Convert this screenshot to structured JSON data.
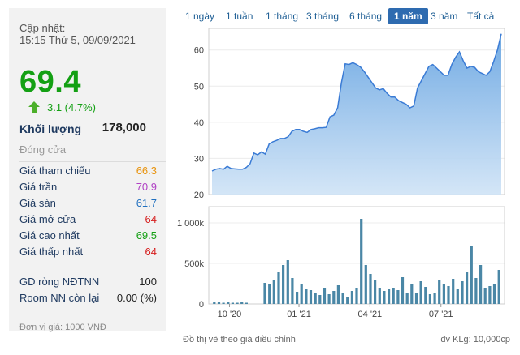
{
  "update": {
    "label": "Cập nhật:",
    "time": "15:15 Thứ 5, 09/09/2021"
  },
  "price": "69.4",
  "change": "3.1 (4.7%)",
  "volume": {
    "label": "Khối lượng",
    "value": "178,000"
  },
  "close_label": "Đóng cửa",
  "stats": [
    {
      "label": "Giá tham chiếu",
      "value": "66.3",
      "color": "#e8920b"
    },
    {
      "label": "Giá trần",
      "value": "70.9",
      "color": "#b042c4"
    },
    {
      "label": "Giá sàn",
      "value": "61.7",
      "color": "#1f6fbf"
    },
    {
      "label": "Giá mở cửa",
      "value": "64",
      "color": "#d62020"
    },
    {
      "label": "Giá cao nhất",
      "value": "69.5",
      "color": "#14a014"
    },
    {
      "label": "Giá thấp nhất",
      "value": "64",
      "color": "#d62020"
    }
  ],
  "foreign": [
    {
      "label": "GD ròng NĐTNN",
      "value": "100"
    },
    {
      "label": "Room NN còn lại",
      "value": "0.00 (%)"
    }
  ],
  "unit_note": "Đơn vị giá: 1000 VNĐ",
  "tabs": [
    {
      "label": "1 ngày",
      "active": false
    },
    {
      "label": "1 tuần",
      "active": false
    },
    {
      "label": "1 tháng",
      "active": false
    },
    {
      "label": "3 tháng",
      "active": false
    },
    {
      "label": "6 tháng",
      "active": false
    },
    {
      "label": "1 năm",
      "active": true
    },
    {
      "label": "3 năm",
      "active": false
    },
    {
      "label": "Tất cả",
      "active": false
    }
  ],
  "footer": {
    "left": "Đồ thị vẽ theo giá điều chỉnh",
    "right": "đv KLg: 10,000cp"
  },
  "chart_data": {
    "type": "area",
    "price_series": {
      "ylim": [
        20,
        66
      ],
      "yticks": [
        "20",
        "30",
        "40",
        "50",
        "60"
      ],
      "values": [
        26.5,
        27,
        27.2,
        27,
        27.8,
        27.2,
        27.1,
        27,
        27,
        27.5,
        28.5,
        31.5,
        31,
        31.8,
        31.2,
        34,
        34.6,
        35,
        35.5,
        35.5,
        36,
        37.5,
        38,
        38,
        37.5,
        37.2,
        38,
        38.2,
        38.5,
        38.5,
        38.6,
        41.5,
        42,
        44,
        51,
        56.2,
        56,
        56.5,
        56,
        55.3,
        54,
        52.5,
        51,
        49.5,
        49,
        49.3,
        48,
        47,
        47,
        46,
        45.5,
        45,
        44,
        44.5,
        49.5,
        51.5,
        53.5,
        55.5,
        56,
        55,
        54,
        53,
        53,
        56,
        58,
        59.5,
        57,
        55,
        55.5,
        55.2,
        54,
        53.5,
        53,
        54,
        56.8,
        60,
        64.5
      ]
    },
    "volume_series": {
      "ylim": [
        0,
        1200
      ],
      "yticks": [
        "0",
        "500k",
        "1 000k"
      ],
      "values": [
        20,
        20,
        15,
        25,
        15,
        15,
        20,
        15,
        0,
        0,
        0,
        260,
        250,
        300,
        400,
        480,
        540,
        320,
        150,
        250,
        180,
        170,
        130,
        110,
        200,
        120,
        160,
        230,
        140,
        80,
        160,
        200,
        1050,
        480,
        370,
        290,
        200,
        160,
        180,
        200,
        170,
        330,
        140,
        240,
        130,
        280,
        210,
        120,
        130,
        300,
        250,
        220,
        310,
        180,
        280,
        400,
        720,
        320,
        480,
        200,
        220,
        240,
        420
      ]
    },
    "x_tick_labels": [
      "10 '20",
      "01 '21",
      "04 '21",
      "07 '21"
    ]
  },
  "colors": {
    "up": "#14a014",
    "line": "#3a7bd5",
    "area": "#7fb2e6",
    "bar": "#4a87a6"
  }
}
